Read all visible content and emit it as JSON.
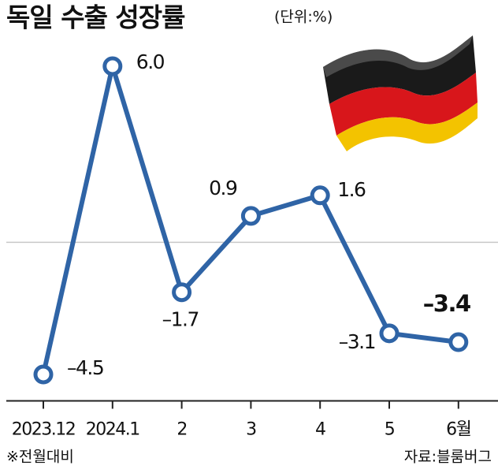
{
  "chart_data": {
    "type": "line",
    "title": "독일 수출 성장률",
    "subtitle": "(단위:%)",
    "categories": [
      "2023.12",
      "2024.1",
      "2",
      "3",
      "4",
      "5",
      "6월"
    ],
    "values": [
      -4.5,
      6.0,
      -1.7,
      0.9,
      1.6,
      -3.1,
      -3.4
    ],
    "value_labels": [
      "–4.5",
      "6.0",
      "–1.7",
      "0.9",
      "1.6",
      "–3.1",
      "–3.4"
    ],
    "color": "#2f64a6",
    "ylim": [
      -5.4,
      6.6
    ],
    "note": "※전월대비",
    "source": "자료:블룸버그"
  }
}
